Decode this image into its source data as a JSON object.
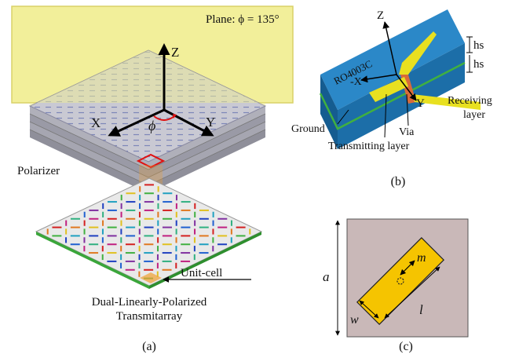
{
  "panel_a": {
    "plane_label": "Plane: ϕ = 135°",
    "axis_z": "Z",
    "axis_x": "X",
    "axis_y": "Y",
    "angle_symbol": "ϕ",
    "polarizer_label": "Polarizer",
    "unit_cell_label": "Unit-cell",
    "array_label_line1": "Dual-Linearly-Polarized",
    "array_label_line2": "Transmitarray",
    "caption": "(a)"
  },
  "panel_b": {
    "axis_z": "Z",
    "axis_x": "-X",
    "axis_y": "Y",
    "substrate_label": "RO4003C",
    "thickness_label_1": "hs",
    "thickness_label_2": "hs",
    "receiving_label_line1": "Receiving",
    "receiving_label_line2": "layer",
    "ground_label": "Ground",
    "via_label": "Via",
    "transmitting_label": "Transmitting layer",
    "caption": "(b)"
  },
  "panel_c": {
    "dim_a": "a",
    "dim_m": "m",
    "dim_l": "l",
    "dim_w": "w",
    "caption": "(c)"
  },
  "colors": {
    "plane_fill": "#f2ef95",
    "polarizer_layer": "#c8c8d2",
    "substrate_blue": "#1f78b8",
    "patch_yellow": "#f5c400",
    "cell_bg": "#c9b8b8",
    "red_box": "#e01010",
    "beam_orange": "#f0a030",
    "ground_green": "#3aa63a"
  }
}
